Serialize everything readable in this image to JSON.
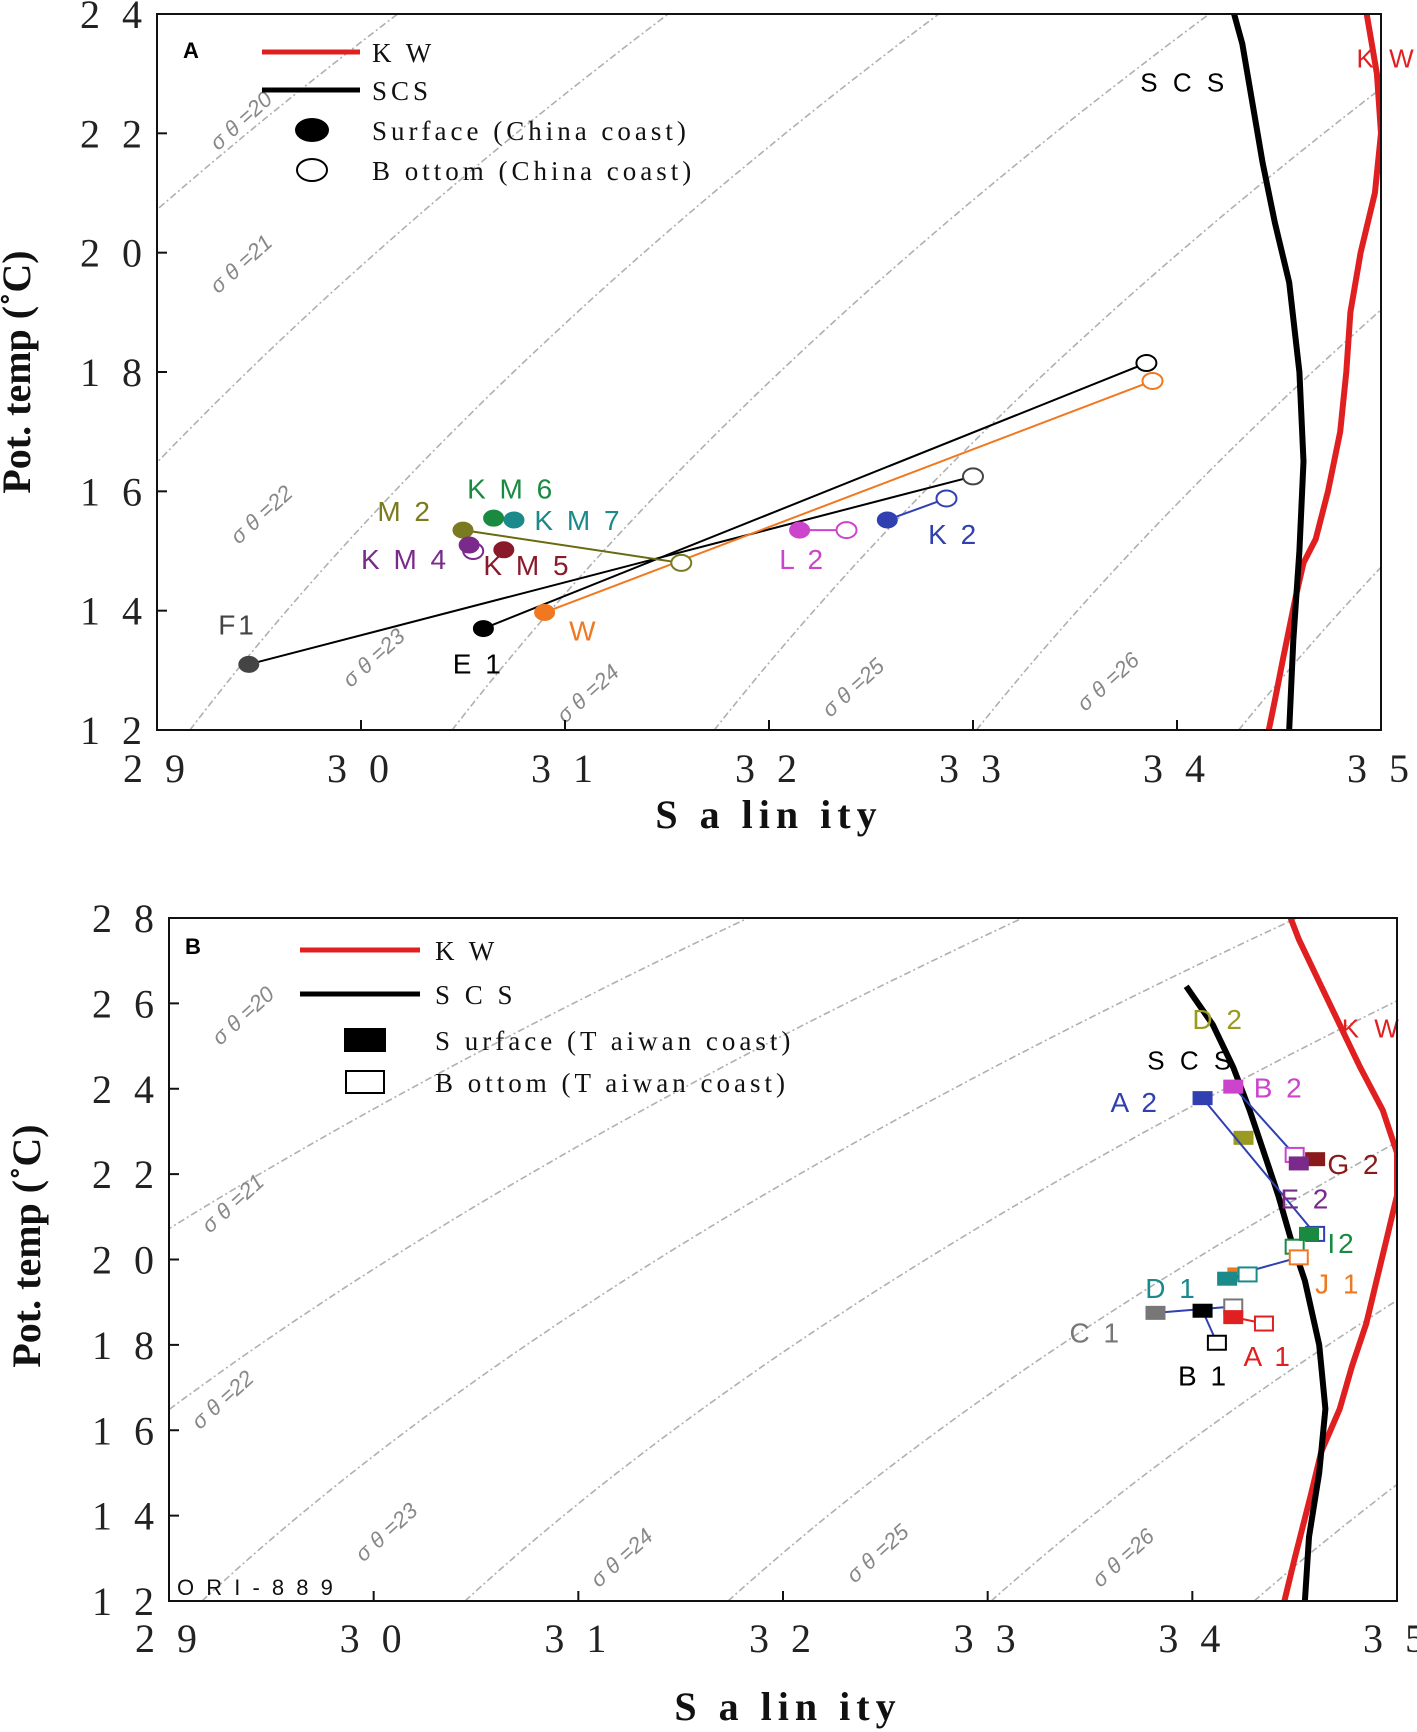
{
  "chart_data": [
    {
      "panel": "A",
      "type": "scatter",
      "xlabel": "S a lin ity",
      "ylabel": "Pot. temp (˚C)",
      "xlim": [
        29,
        35
      ],
      "ylim": [
        12,
        24
      ],
      "xticks": [
        29,
        30,
        31,
        32,
        33,
        34,
        35
      ],
      "xtick_labels": [
        "2 9",
        "3 0",
        "3 1",
        "3 2",
        "3 3",
        "3 4",
        "3 5"
      ],
      "yticks": [
        12,
        14,
        16,
        18,
        20,
        22,
        24
      ],
      "ytick_labels": [
        "1 2",
        "1 4",
        "1 6",
        "1 8",
        "2 0",
        "2 2",
        "2 4"
      ],
      "legend": [
        {
          "key": "kw",
          "label": "K W",
          "kind": "line",
          "color": "#e02020"
        },
        {
          "key": "scs",
          "label": "SCS",
          "kind": "line",
          "color": "#000000"
        },
        {
          "key": "surface",
          "label": "Surface (China coast)",
          "kind": "filled-circle",
          "color": "#000000"
        },
        {
          "key": "bottom",
          "label": "B ottom (China coast)",
          "kind": "open-circle",
          "color": "#000000"
        }
      ],
      "curves": [
        {
          "name": "KW",
          "label": "K W",
          "color": "#e02020",
          "points": [
            [
              34.45,
              12
            ],
            [
              34.48,
              12.5
            ],
            [
              34.52,
              13.2
            ],
            [
              34.58,
              14.2
            ],
            [
              34.62,
              14.8
            ],
            [
              34.68,
              15.2
            ],
            [
              34.74,
              16
            ],
            [
              34.8,
              17
            ],
            [
              34.83,
              18
            ],
            [
              34.85,
              19
            ],
            [
              34.9,
              20
            ],
            [
              34.97,
              21
            ],
            [
              35.0,
              22
            ],
            [
              34.98,
              23
            ],
            [
              34.93,
              24
            ]
          ],
          "label_at": [
            34.88,
            23.1
          ]
        },
        {
          "name": "SCS",
          "label": "S C S",
          "color": "#000000",
          "points": [
            [
              34.55,
              12
            ],
            [
              34.57,
              13.5
            ],
            [
              34.6,
              15
            ],
            [
              34.62,
              16.5
            ],
            [
              34.6,
              18
            ],
            [
              34.55,
              19.5
            ],
            [
              34.48,
              20.5
            ],
            [
              34.42,
              21.5
            ],
            [
              34.37,
              22.5
            ],
            [
              34.32,
              23.5
            ],
            [
              34.28,
              24
            ]
          ],
          "label_at": [
            33.82,
            22.7
          ]
        }
      ],
      "isopycnals": [
        {
          "label": "σ θ =20",
          "sigma": 20,
          "label_at": [
            29.3,
            21.7
          ]
        },
        {
          "label": "σ θ =21",
          "sigma": 21,
          "label_at": [
            29.3,
            19.3
          ]
        },
        {
          "label": "σ θ =22",
          "sigma": 22,
          "label_at": [
            29.4,
            15.1
          ]
        },
        {
          "label": "σ θ =23",
          "sigma": 23,
          "label_at": [
            29.95,
            12.7
          ]
        },
        {
          "label": "σ θ =24",
          "sigma": 24,
          "label_at": [
            31.0,
            12.1
          ]
        },
        {
          "label": "σ θ =25",
          "sigma": 25,
          "label_at": [
            32.3,
            12.2
          ]
        },
        {
          "label": "σ θ =26",
          "sigma": 26,
          "label_at": [
            33.55,
            12.3
          ]
        }
      ],
      "stations": [
        {
          "label": "F1",
          "color": "#444444",
          "surface": [
            29.45,
            13.1
          ],
          "bottom": [
            33.0,
            16.25
          ],
          "line_color": "#000000",
          "label_at": [
            29.3,
            13.6
          ]
        },
        {
          "label": "E 1",
          "color": "#000000",
          "surface": [
            30.6,
            13.7
          ],
          "bottom": [
            33.85,
            18.15
          ],
          "line_color": "#000000",
          "label_at": [
            30.45,
            12.95
          ]
        },
        {
          "label": "W",
          "color": "#f07820",
          "surface": [
            30.9,
            13.97
          ],
          "bottom": [
            33.88,
            17.85
          ],
          "line_color": "#f07820",
          "label_at": [
            31.02,
            13.5
          ]
        },
        {
          "label": "M 2",
          "color": "#7a7a20",
          "surface": [
            30.5,
            15.35
          ],
          "bottom": [
            31.57,
            14.8
          ],
          "line_color": "#6a6a10",
          "label_at": [
            30.08,
            15.5
          ]
        },
        {
          "label": "K M 6",
          "color": "#1a8a40",
          "surface": [
            30.65,
            15.55
          ],
          "bottom": null,
          "line_color": null,
          "label_at": [
            30.52,
            15.88
          ]
        },
        {
          "label": "K M 7",
          "color": "#1a8a8a",
          "surface": [
            30.75,
            15.52
          ],
          "bottom": null,
          "line_color": null,
          "label_at": [
            30.85,
            15.35
          ]
        },
        {
          "label": "K M 4",
          "color": "#7a2a8a",
          "surface": [
            30.53,
            15.1
          ],
          "bottom": [
            30.55,
            15.0
          ],
          "line_color": "#7a2a8a",
          "label_at": [
            30.0,
            14.7
          ]
        },
        {
          "label": "K M 5",
          "color": "#8a1a2a",
          "surface": [
            30.7,
            15.02
          ],
          "bottom": null,
          "line_color": null,
          "label_at": [
            30.6,
            14.6
          ]
        },
        {
          "label": "L 2",
          "color": "#cc44cc",
          "surface": [
            32.15,
            15.35
          ],
          "bottom": [
            32.38,
            15.35
          ],
          "line_color": "#cc44cc",
          "label_at": [
            32.05,
            14.7
          ]
        },
        {
          "label": "K 2",
          "color": "#3040b0",
          "surface": [
            32.58,
            15.52
          ],
          "bottom": [
            32.87,
            15.88
          ],
          "line_color": "#3040b0",
          "label_at": [
            32.78,
            15.12
          ]
        }
      ]
    },
    {
      "panel": "B",
      "type": "scatter",
      "xlabel": "S a lin ity",
      "ylabel": "Pot. temp (˚C)",
      "xlim": [
        29,
        35
      ],
      "ylim": [
        12,
        28
      ],
      "xticks": [
        29,
        30,
        31,
        32,
        33,
        34,
        35
      ],
      "xtick_labels": [
        "2 9",
        "3 0",
        "3 1",
        "3 2",
        "3 3",
        "3 4",
        "3 5"
      ],
      "yticks": [
        12,
        14,
        16,
        18,
        20,
        22,
        24,
        26,
        28
      ],
      "ytick_labels": [
        "1 2",
        "1 4",
        "1 6",
        "1 8",
        "2 0",
        "2 2",
        "2 4",
        "2 6",
        "2 8"
      ],
      "legend": [
        {
          "key": "kw",
          "label": "K W",
          "kind": "line",
          "color": "#e02020"
        },
        {
          "key": "scs",
          "label": "S C S",
          "kind": "line",
          "color": "#000000"
        },
        {
          "key": "surface",
          "label": "S urface  (T aiwan coast)",
          "kind": "filled-square",
          "color": "#000000"
        },
        {
          "key": "bottom",
          "label": "B ottom  (T aiwan  coast)",
          "kind": "open-square",
          "color": "#000000"
        }
      ],
      "corner_text": "O R I - 8 8 9",
      "curves": [
        {
          "name": "KW",
          "label": "K W",
          "color": "#e02020",
          "points": [
            [
              34.45,
              12
            ],
            [
              34.5,
              13
            ],
            [
              34.58,
              14.5
            ],
            [
              34.63,
              15.5
            ],
            [
              34.72,
              16.5
            ],
            [
              34.78,
              17.5
            ],
            [
              34.85,
              18.5
            ],
            [
              34.9,
              19.5
            ],
            [
              34.95,
              20.5
            ],
            [
              35.0,
              21.5
            ],
            [
              35.0,
              22.5
            ],
            [
              34.93,
              23.5
            ],
            [
              34.82,
              24.5
            ],
            [
              34.72,
              25.5
            ],
            [
              34.62,
              26.5
            ],
            [
              34.52,
              27.5
            ],
            [
              34.48,
              28
            ]
          ],
          "label_at": [
            34.73,
            25.2
          ]
        },
        {
          "name": "SCS",
          "label": "S C S",
          "color": "#000000",
          "points": [
            [
              34.55,
              12
            ],
            [
              34.57,
              13.5
            ],
            [
              34.62,
              15
            ],
            [
              34.65,
              16.5
            ],
            [
              34.62,
              18
            ],
            [
              34.55,
              19.5
            ],
            [
              34.48,
              20.5
            ],
            [
              34.42,
              21.5
            ],
            [
              34.35,
              22.5
            ],
            [
              34.28,
              23.5
            ],
            [
              34.2,
              24.5
            ],
            [
              34.1,
              25.5
            ],
            [
              33.97,
              26.4
            ]
          ],
          "label_at": [
            33.78,
            24.45
          ]
        }
      ],
      "isopycnals": [
        {
          "label": "σ θ =20",
          "sigma": 20,
          "label_at": [
            29.25,
            25.0
          ]
        },
        {
          "label": "σ θ =21",
          "sigma": 21,
          "label_at": [
            29.2,
            20.6
          ]
        },
        {
          "label": "σ θ =22",
          "sigma": 22,
          "label_at": [
            29.15,
            16.0
          ]
        },
        {
          "label": "σ θ =23",
          "sigma": 23,
          "label_at": [
            29.95,
            12.9
          ]
        },
        {
          "label": "σ θ =24",
          "sigma": 24,
          "label_at": [
            31.1,
            12.3
          ]
        },
        {
          "label": "σ θ =25",
          "sigma": 25,
          "label_at": [
            32.35,
            12.4
          ]
        },
        {
          "label": "σ θ =26",
          "sigma": 26,
          "label_at": [
            33.55,
            12.3
          ]
        }
      ],
      "stations": [
        {
          "label": "D 2",
          "color": "#9a9a20",
          "surface": [
            34.25,
            22.85
          ],
          "bottom": null,
          "line_color": null,
          "label_at": [
            34.0,
            25.4
          ]
        },
        {
          "label": "B 2",
          "color": "#cc44cc",
          "surface": [
            34.2,
            24.05
          ],
          "bottom": [
            34.5,
            22.45
          ],
          "line_color": "#3040b0",
          "label_at": [
            34.3,
            23.8
          ]
        },
        {
          "label": "A 2",
          "color": "#3040b0",
          "surface": [
            34.05,
            23.78
          ],
          "bottom": [
            34.6,
            20.6
          ],
          "line_color": "#3040b0",
          "label_at": [
            33.6,
            23.45
          ]
        },
        {
          "label": "G 2",
          "color": "#8a1a1a",
          "surface": [
            34.6,
            22.35
          ],
          "bottom": null,
          "line_color": null,
          "label_at": [
            34.66,
            22.0
          ]
        },
        {
          "label": "E 2",
          "color": "#7a2a8a",
          "surface": [
            34.52,
            22.25
          ],
          "bottom": null,
          "line_color": null,
          "label_at": [
            34.43,
            21.2
          ]
        },
        {
          "label": "I2",
          "color": "#1a8a40",
          "surface": [
            34.57,
            20.6
          ],
          "bottom": [
            34.5,
            20.3
          ],
          "line_color": "#1a8a40",
          "label_at": [
            34.66,
            20.15
          ]
        },
        {
          "label": "J 1",
          "color": "#f07820",
          "surface": [
            34.22,
            19.65
          ],
          "bottom": [
            34.52,
            20.05
          ],
          "line_color": "#3040b0",
          "label_at": [
            34.6,
            19.2
          ]
        },
        {
          "label": "D 1",
          "color": "#1a8a8a",
          "surface": [
            34.17,
            19.55
          ],
          "bottom": [
            34.27,
            19.65
          ],
          "line_color": "#3040b0",
          "label_at": [
            33.77,
            19.1
          ]
        },
        {
          "label": "C 1",
          "color": "#777777",
          "surface": [
            33.82,
            18.75
          ],
          "bottom": [
            34.2,
            18.9
          ],
          "line_color": "#3040b0",
          "label_at": [
            33.4,
            18.05
          ]
        },
        {
          "label": "B 1",
          "color": "#000000",
          "surface": [
            34.05,
            18.8
          ],
          "bottom": [
            34.12,
            18.05
          ],
          "line_color": "#3040b0",
          "label_at": [
            33.93,
            17.05
          ]
        },
        {
          "label": "A 1",
          "color": "#e02020",
          "surface": [
            34.2,
            18.65
          ],
          "bottom": [
            34.35,
            18.5
          ],
          "line_color": "#e02020",
          "label_at": [
            34.25,
            17.5
          ]
        }
      ]
    }
  ]
}
